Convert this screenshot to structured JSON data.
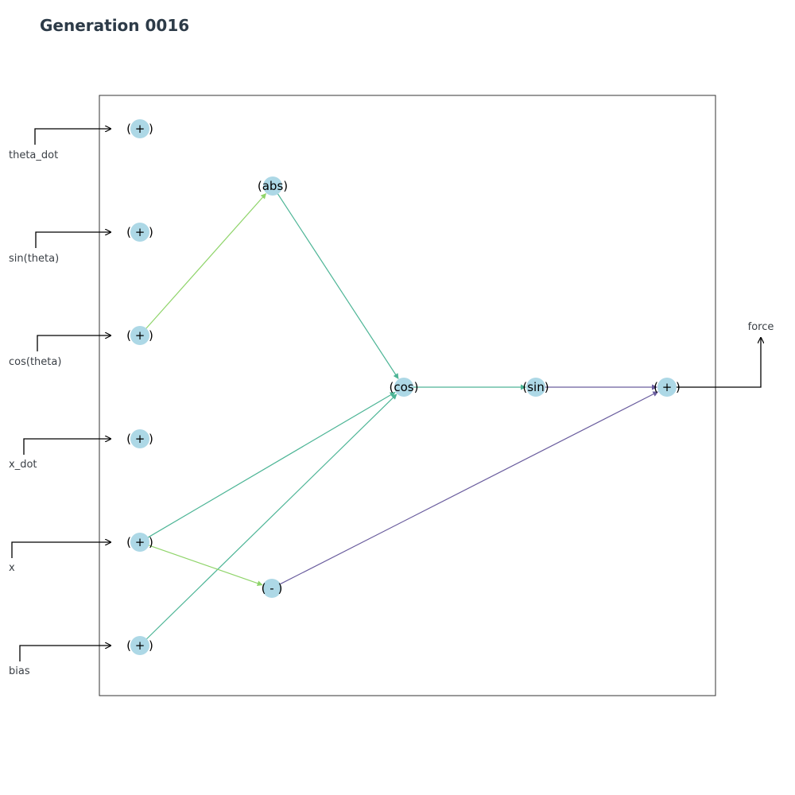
{
  "title": "Generation 0016",
  "colors": {
    "node_fill": "#add8e6",
    "frame": "#333333",
    "input_arrow": "#000000",
    "edge_light_green": "#8fd46a",
    "edge_teal": "#4db596",
    "edge_purple": "#6a5d9e"
  },
  "inputs": [
    {
      "id": "theta_dot",
      "label": "theta_dot"
    },
    {
      "id": "sin_theta",
      "label": "sin(theta)"
    },
    {
      "id": "cos_theta",
      "label": "cos(theta)"
    },
    {
      "id": "x_dot",
      "label": "x_dot"
    },
    {
      "id": "x",
      "label": "x"
    },
    {
      "id": "bias",
      "label": "bias"
    }
  ],
  "output": {
    "label": "force"
  },
  "nodes": [
    {
      "id": "in0",
      "text": "( + )"
    },
    {
      "id": "in1",
      "text": "( + )"
    },
    {
      "id": "in2",
      "text": "( + )"
    },
    {
      "id": "in3",
      "text": "( + )"
    },
    {
      "id": "in4",
      "text": "( + )"
    },
    {
      "id": "in5",
      "text": "( + )"
    },
    {
      "id": "abs",
      "text": "(abs)"
    },
    {
      "id": "minus",
      "text": "( - )"
    },
    {
      "id": "cos",
      "text": "(cos)"
    },
    {
      "id": "sin",
      "text": "(sin)"
    },
    {
      "id": "out",
      "text": "( + )"
    }
  ],
  "edges": [
    {
      "from": "in2",
      "to": "abs",
      "color": "edge_light_green"
    },
    {
      "from": "abs",
      "to": "cos",
      "color": "edge_teal"
    },
    {
      "from": "in4",
      "to": "cos",
      "color": "edge_teal"
    },
    {
      "from": "in5",
      "to": "cos",
      "color": "edge_teal"
    },
    {
      "from": "in4",
      "to": "minus",
      "color": "edge_light_green"
    },
    {
      "from": "cos",
      "to": "sin",
      "color": "edge_teal"
    },
    {
      "from": "sin",
      "to": "out",
      "color": "edge_purple"
    },
    {
      "from": "minus",
      "to": "out",
      "color": "edge_purple"
    }
  ]
}
